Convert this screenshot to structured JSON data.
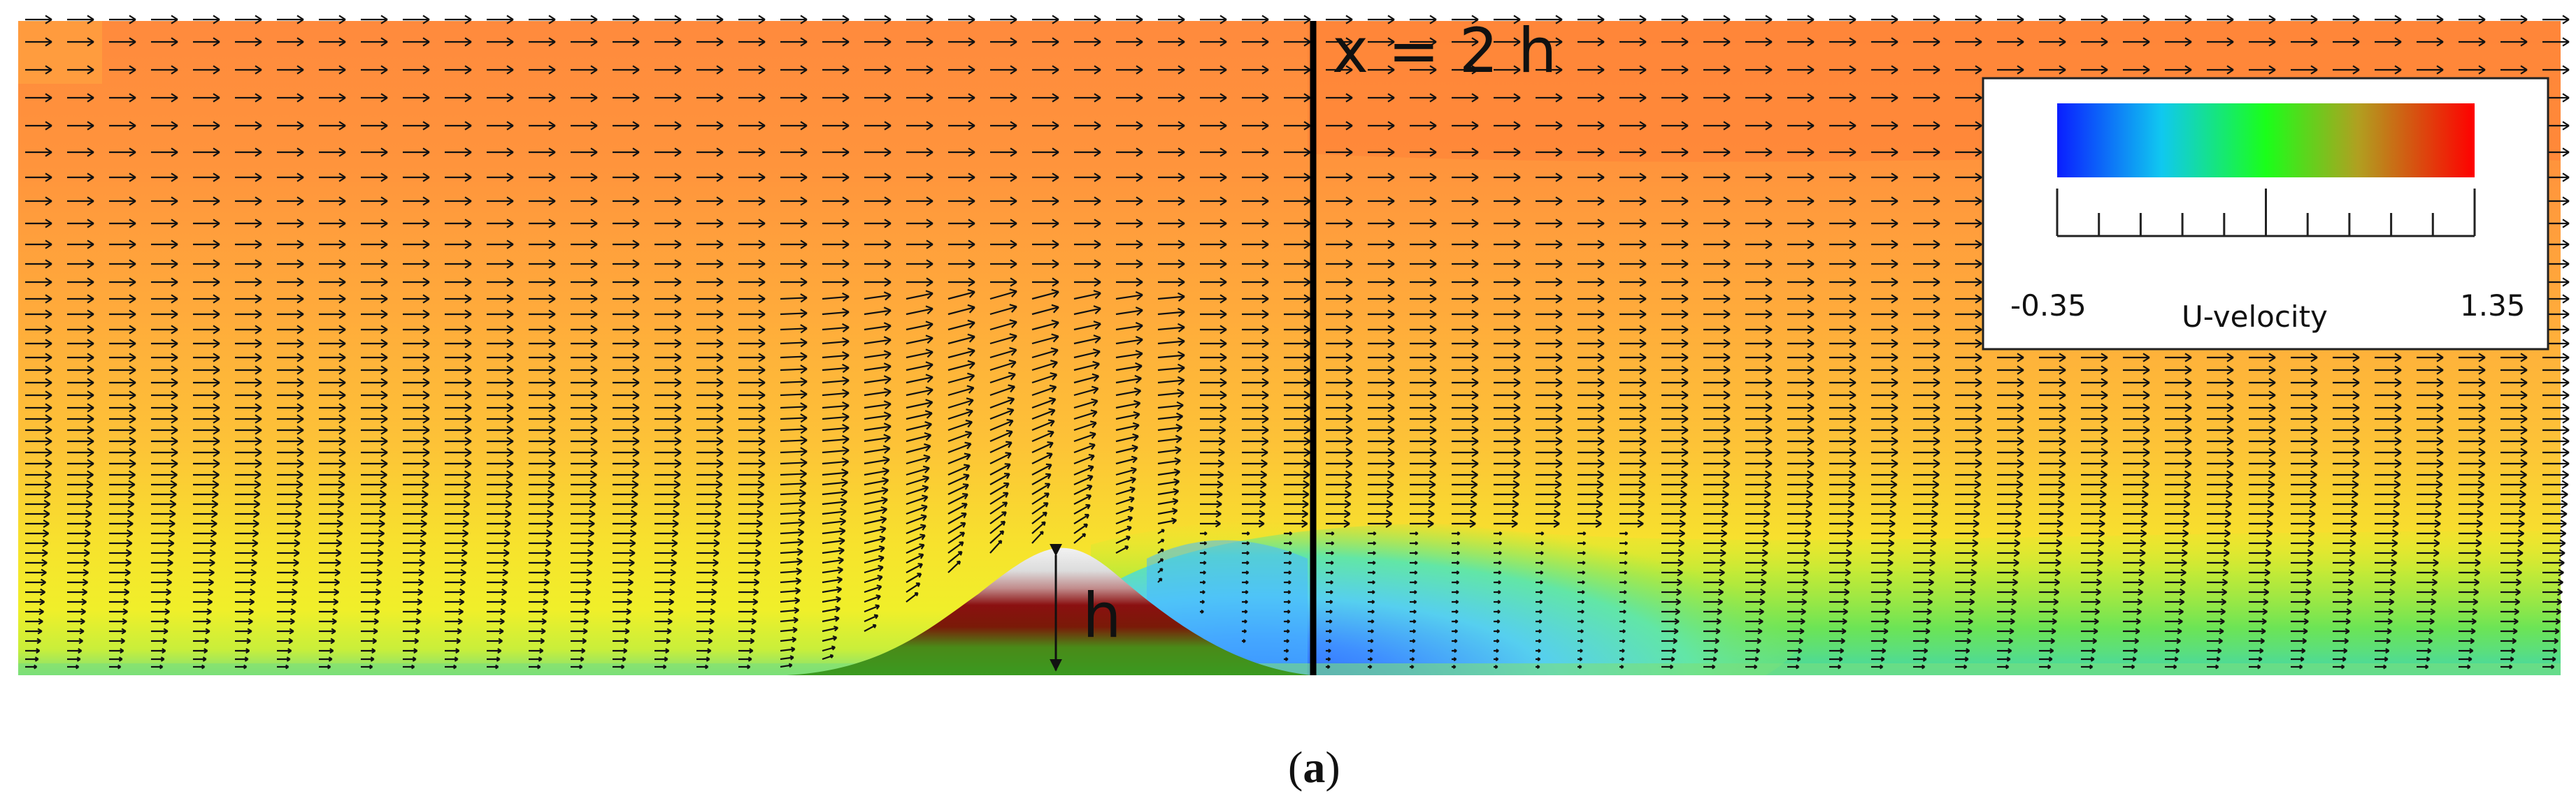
{
  "annotations": {
    "line_label": "x = 2 h",
    "height_label": "h"
  },
  "colorbar": {
    "title": "U-velocity",
    "min_label": "-0.35",
    "max_label": "1.35",
    "colors": [
      "#0a1eff",
      "#10c8f0",
      "#1aff1a",
      "#b0a020",
      "#ff0000"
    ]
  },
  "caption": {
    "open": "(",
    "letter": "a",
    "close": ")"
  },
  "field_colors": {
    "top": "#ff8a3d",
    "mid": "#ffb03a",
    "near_wall": "#f4ec2a",
    "wall": "#7be07a",
    "wake_blue": "#3a7cff",
    "wake_cyan": "#59d8ee",
    "wake_green": "#5fe35a",
    "hill_white": "#f0f0f0",
    "hill_red": "#8a1010",
    "hill_green": "#3a9a20"
  }
}
